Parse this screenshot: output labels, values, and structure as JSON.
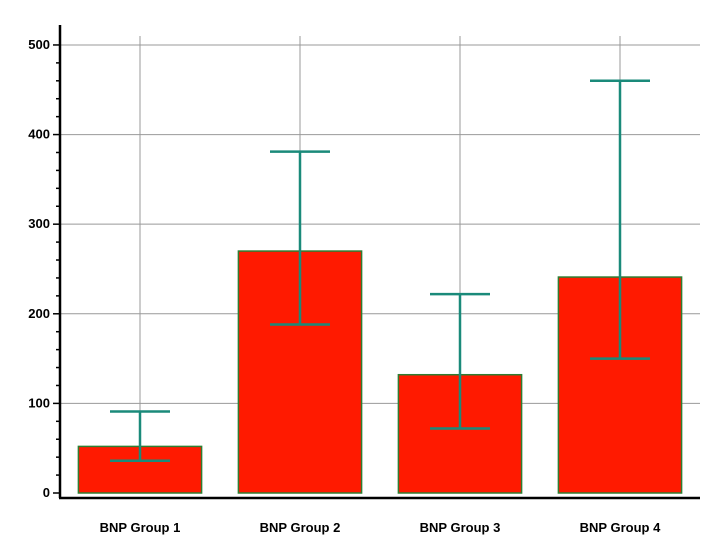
{
  "chart_data": {
    "type": "bar",
    "title": "",
    "xlabel": "",
    "ylabel": "",
    "categories": [
      "BNP Group 1",
      "BNP Group 2",
      "BNP Group 3",
      "BNP Group 4"
    ],
    "values": [
      52,
      270,
      132,
      241
    ],
    "error_low": [
      36,
      188,
      72,
      150
    ],
    "error_high": [
      91,
      381,
      222,
      460
    ],
    "ylim": [
      0,
      510
    ],
    "yticks": [
      0,
      100,
      200,
      300,
      400,
      500
    ],
    "grid": true,
    "legend": "none",
    "colors": {
      "bar_fill": "#ff1a00",
      "bar_stroke": "#2e7d32",
      "error_bar": "#1a8a7a",
      "grid": "#999999",
      "axis": "#000000"
    }
  }
}
